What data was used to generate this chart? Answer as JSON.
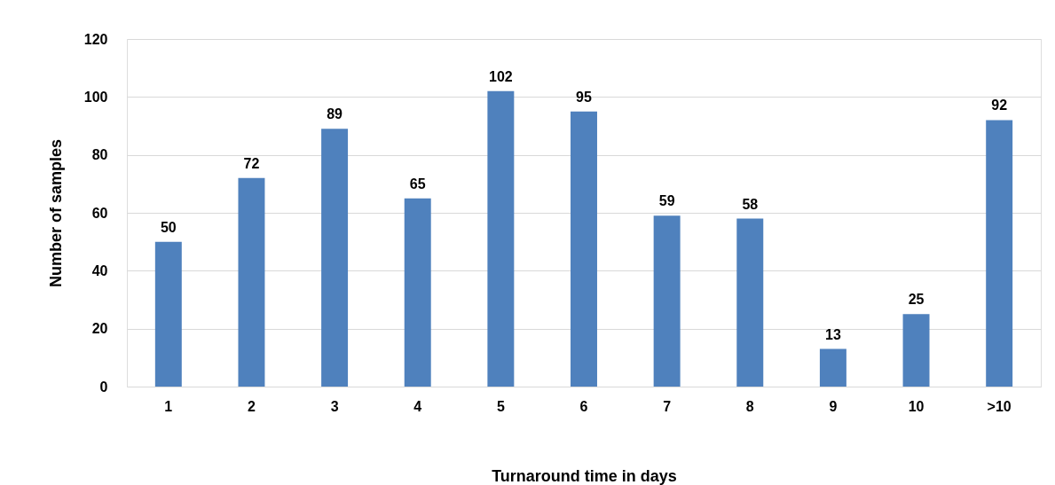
{
  "chart_data": {
    "type": "bar",
    "xlabel": "Turnaround time in days",
    "ylabel": "Number of samples",
    "categories": [
      "1",
      "2",
      "3",
      "4",
      "5",
      "6",
      "7",
      "8",
      "9",
      "10",
      ">10"
    ],
    "values": [
      50,
      72,
      89,
      65,
      102,
      95,
      59,
      58,
      13,
      25,
      92
    ],
    "color": "#4f81bd",
    "ylim": [
      0,
      120
    ],
    "yticks": [
      0,
      20,
      40,
      60,
      80,
      100,
      120
    ],
    "grid": "y",
    "data_labels": true
  }
}
